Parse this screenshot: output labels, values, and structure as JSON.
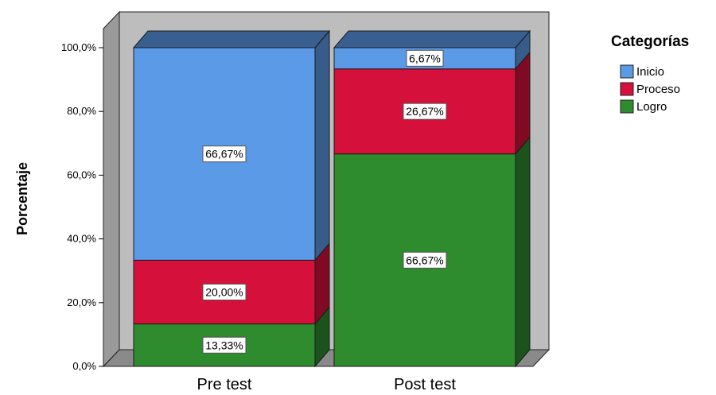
{
  "chart_data": {
    "type": "bar",
    "stacked": true,
    "three_d": true,
    "categories": [
      "Pre test",
      "Post test"
    ],
    "series": [
      {
        "name": "Logro",
        "color": "#2e8b2e",
        "values": [
          13.33,
          66.67
        ],
        "labels": [
          "13,33%",
          "66,67%"
        ]
      },
      {
        "name": "Proceso",
        "color": "#d5103a",
        "values": [
          20.0,
          26.67
        ],
        "labels": [
          "20,00%",
          "26,67%"
        ]
      },
      {
        "name": "Inicio",
        "color": "#5b9ae6",
        "values": [
          66.67,
          6.67
        ],
        "labels": [
          "66,67%",
          "6,67%"
        ]
      }
    ],
    "ylabel": "Porcentaje",
    "ylim": [
      0,
      100
    ],
    "yticks": [
      "0,0%",
      "20,0%",
      "40,0%",
      "60,0%",
      "80,0%",
      "100,0%"
    ],
    "legend": {
      "title": "Categorías",
      "position": "right",
      "order": [
        "Inicio",
        "Proceso",
        "Logro"
      ]
    },
    "grid": false
  }
}
